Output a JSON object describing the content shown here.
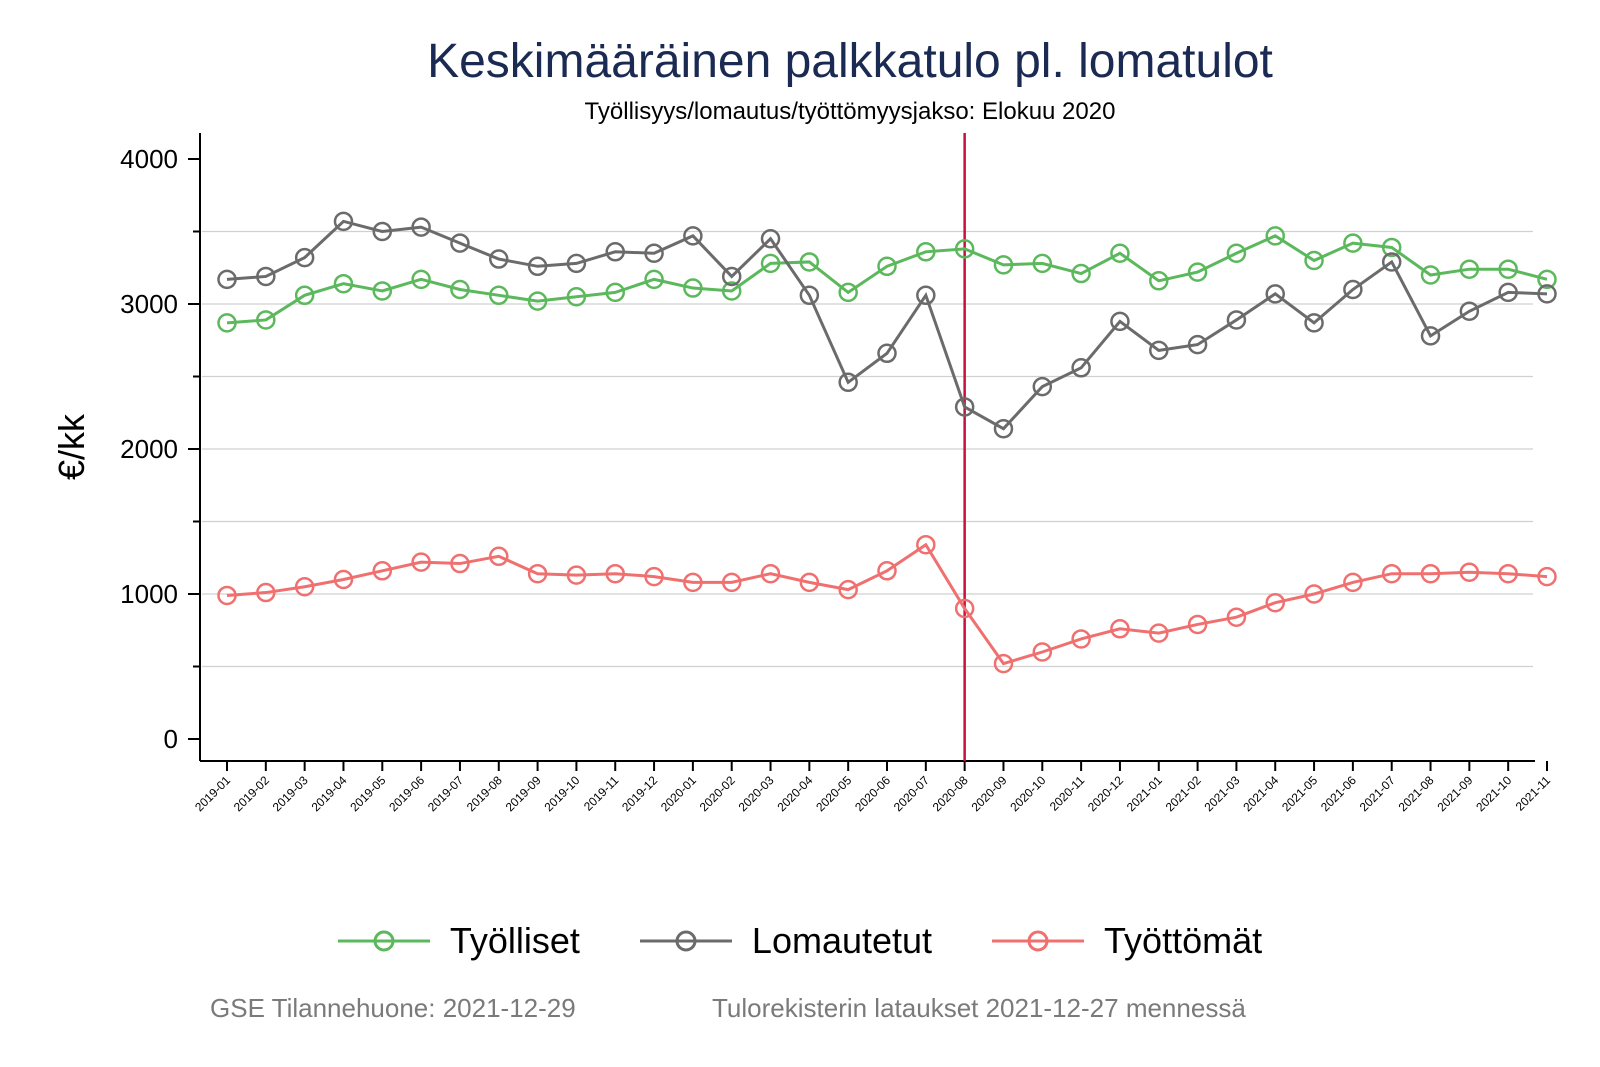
{
  "title": "Keskimääräinen palkkatulo pl. lomatulot",
  "subtitle": "Työllisyys/lomautus/työttömyysjakso: Elokuu 2020",
  "footer": {
    "left": "GSE Tilannehuone: 2021-12-29",
    "right": "Tulorekisterin lataukset 2021-12-27 mennessä"
  },
  "chart_data": {
    "type": "line",
    "ylabel": "€/kk",
    "xlabel": "",
    "ylim": [
      -150,
      4150
    ],
    "yticks": [
      0,
      1000,
      2000,
      3000,
      4000
    ],
    "grid": true,
    "legend_position": "bottom",
    "reference_line": {
      "x": "2020-08",
      "color": "#c8103e"
    },
    "categories": [
      "2019-01",
      "2019-02",
      "2019-03",
      "2019-04",
      "2019-05",
      "2019-06",
      "2019-07",
      "2019-08",
      "2019-09",
      "2019-10",
      "2019-11",
      "2019-12",
      "2020-01",
      "2020-02",
      "2020-03",
      "2020-04",
      "2020-05",
      "2020-06",
      "2020-07",
      "2020-08",
      "2020-09",
      "2020-10",
      "2020-11",
      "2020-12",
      "2021-01",
      "2021-02",
      "2021-03",
      "2021-04",
      "2021-05",
      "2021-06",
      "2021-07",
      "2021-08",
      "2021-09",
      "2021-10",
      "2021-11"
    ],
    "series": [
      {
        "name": "Työlliset",
        "color": "#5cb85c",
        "values": [
          2870,
          2890,
          3060,
          3140,
          3090,
          3170,
          3100,
          3060,
          3020,
          3050,
          3080,
          3170,
          3110,
          3090,
          3280,
          3290,
          3080,
          3260,
          3360,
          3380,
          3270,
          3280,
          3210,
          3350,
          3160,
          3220,
          3350,
          3470,
          3300,
          3420,
          3390,
          3200,
          3240,
          3240,
          3170
        ]
      },
      {
        "name": "Lomautetut",
        "color": "#6b6b6b",
        "values": [
          3170,
          3190,
          3320,
          3570,
          3500,
          3530,
          3420,
          3310,
          3260,
          3280,
          3360,
          3350,
          3470,
          3190,
          3450,
          3060,
          2460,
          2660,
          3060,
          2290,
          2140,
          2430,
          2560,
          2880,
          2680,
          2720,
          2890,
          3070,
          2870,
          3100,
          3290,
          2780,
          2950,
          3080,
          3070
        ]
      },
      {
        "name": "Työttömät",
        "color": "#f07070",
        "values": [
          990,
          1010,
          1050,
          1100,
          1160,
          1220,
          1210,
          1260,
          1140,
          1130,
          1140,
          1120,
          1080,
          1080,
          1140,
          1080,
          1030,
          1160,
          1340,
          900,
          520,
          600,
          690,
          760,
          730,
          790,
          840,
          940,
          1000,
          1080,
          1140,
          1140,
          1150,
          1140,
          1120
        ]
      }
    ]
  }
}
